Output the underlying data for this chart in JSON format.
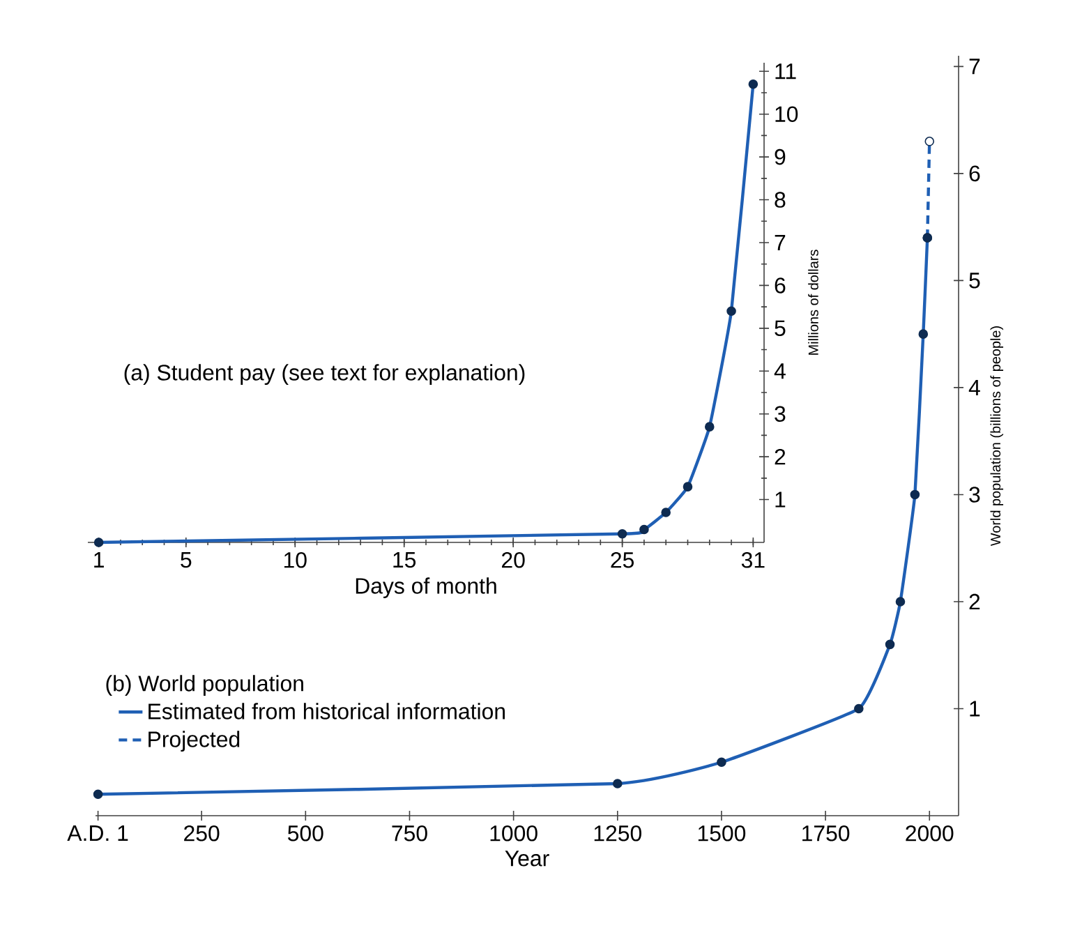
{
  "chart_data": [
    {
      "type": "line",
      "title": "(a) Student pay (see text for explanation)",
      "xlabel": "Days of month",
      "ylabel": "Millions of dollars",
      "x": [
        1,
        25,
        26,
        27,
        28,
        29,
        30,
        31
      ],
      "series": [
        {
          "color": "#1f5fb4",
          "values": [
            0,
            0.2,
            0.3,
            0.7,
            1.3,
            2.7,
            5.4,
            10.7
          ]
        }
      ],
      "xlim": [
        0.5,
        31.5
      ],
      "xticks": [
        1,
        5,
        10,
        15,
        20,
        25,
        31
      ],
      "ylim": [
        0,
        11.2
      ],
      "yticks": [
        1,
        2,
        3,
        4,
        5,
        6,
        7,
        8,
        9,
        10,
        11
      ],
      "marker": "circle",
      "legend": false,
      "grid": false
    },
    {
      "type": "line",
      "legend_title": "(b) World population",
      "xlabel": "Year",
      "ylabel": "World population (billions of people)",
      "series": [
        {
          "name": "Estimated from historical information",
          "color": "#1f5fb4",
          "x": [
            1,
            1250,
            1500,
            1830,
            1905,
            1930,
            1965,
            1985,
            1995
          ],
          "values": [
            0.2,
            0.3,
            0.5,
            1.0,
            1.6,
            2.0,
            3.0,
            4.5,
            5.4
          ]
        },
        {
          "name": "Projected",
          "color": "#1f5fb4",
          "line_style": "dashed",
          "x": [
            1995,
            2000
          ],
          "values": [
            5.4,
            6.3
          ]
        }
      ],
      "xlim": [
        -5,
        2070
      ],
      "xticks": [
        {
          "value": 1,
          "label": "A.D. 1"
        },
        250,
        500,
        750,
        1000,
        1250,
        1500,
        1750,
        2000
      ],
      "ylim": [
        0,
        7.1
      ],
      "yticks": [
        1,
        2,
        3,
        4,
        5,
        6,
        7
      ],
      "marker": "circle",
      "legend": "bottom left",
      "grid": false
    }
  ]
}
